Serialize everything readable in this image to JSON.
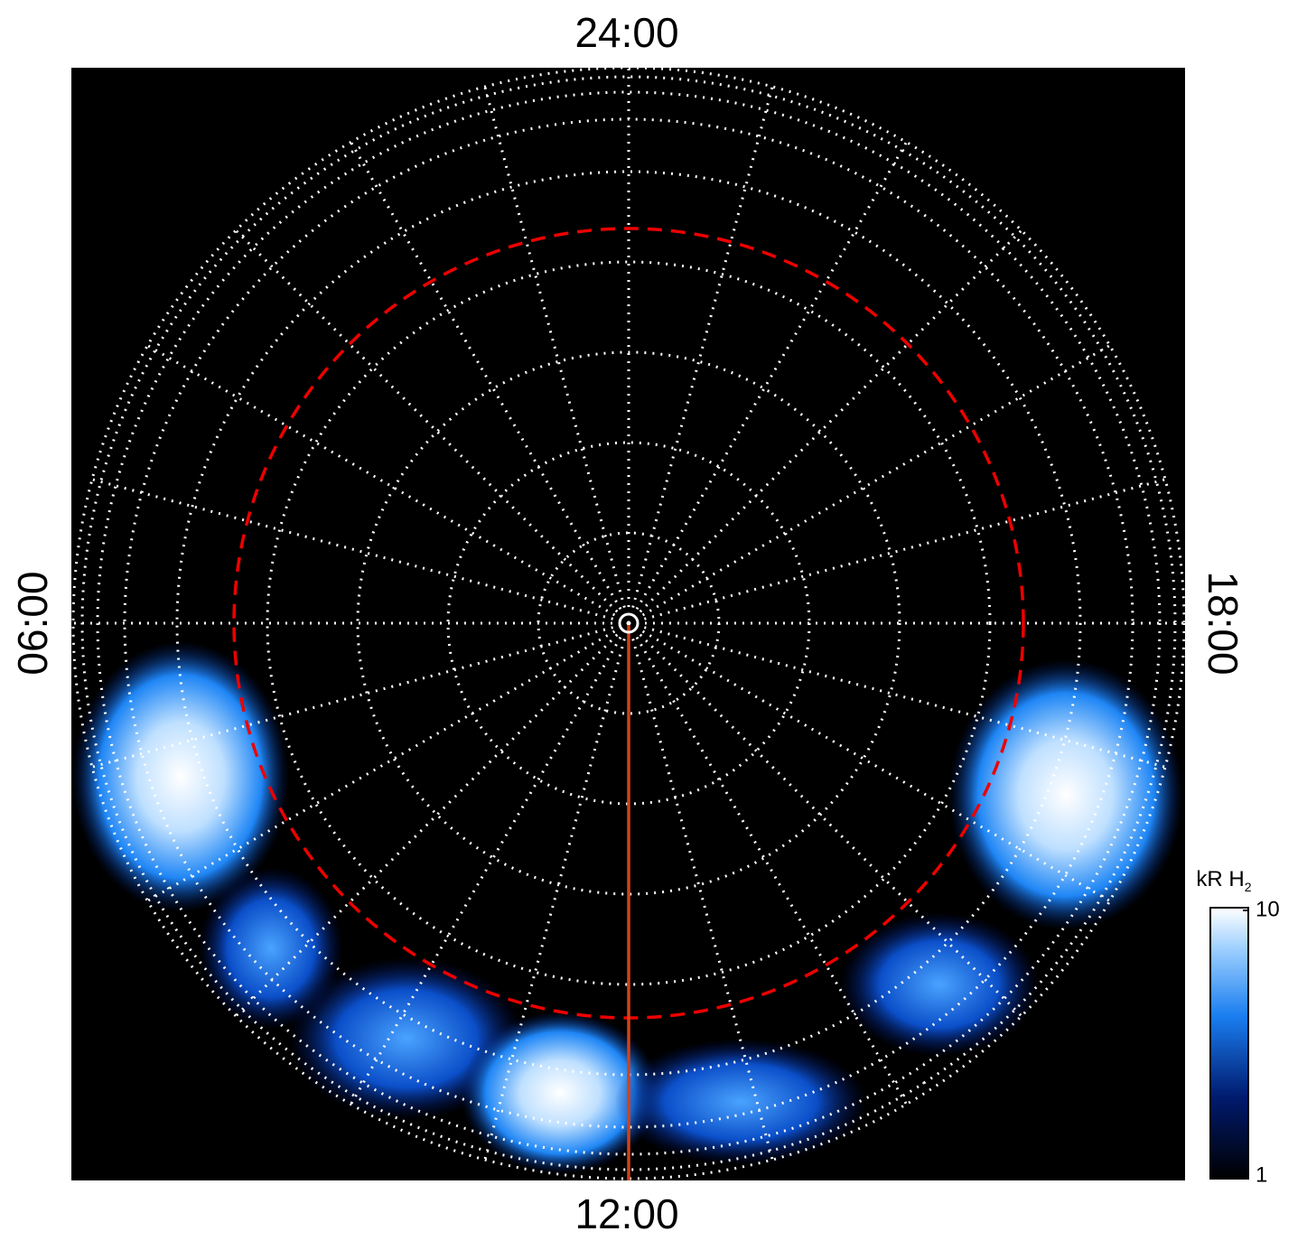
{
  "chart_data": {
    "type": "polar-image",
    "angular_labels": {
      "top": "24:00",
      "bottom": "12:00",
      "left": "06:00",
      "right": "18:00"
    },
    "colorbar": {
      "title": "kR H",
      "title_subscript": "2",
      "lim": [
        1,
        10
      ],
      "ticks": [
        1,
        10
      ],
      "log": true
    }
  }
}
